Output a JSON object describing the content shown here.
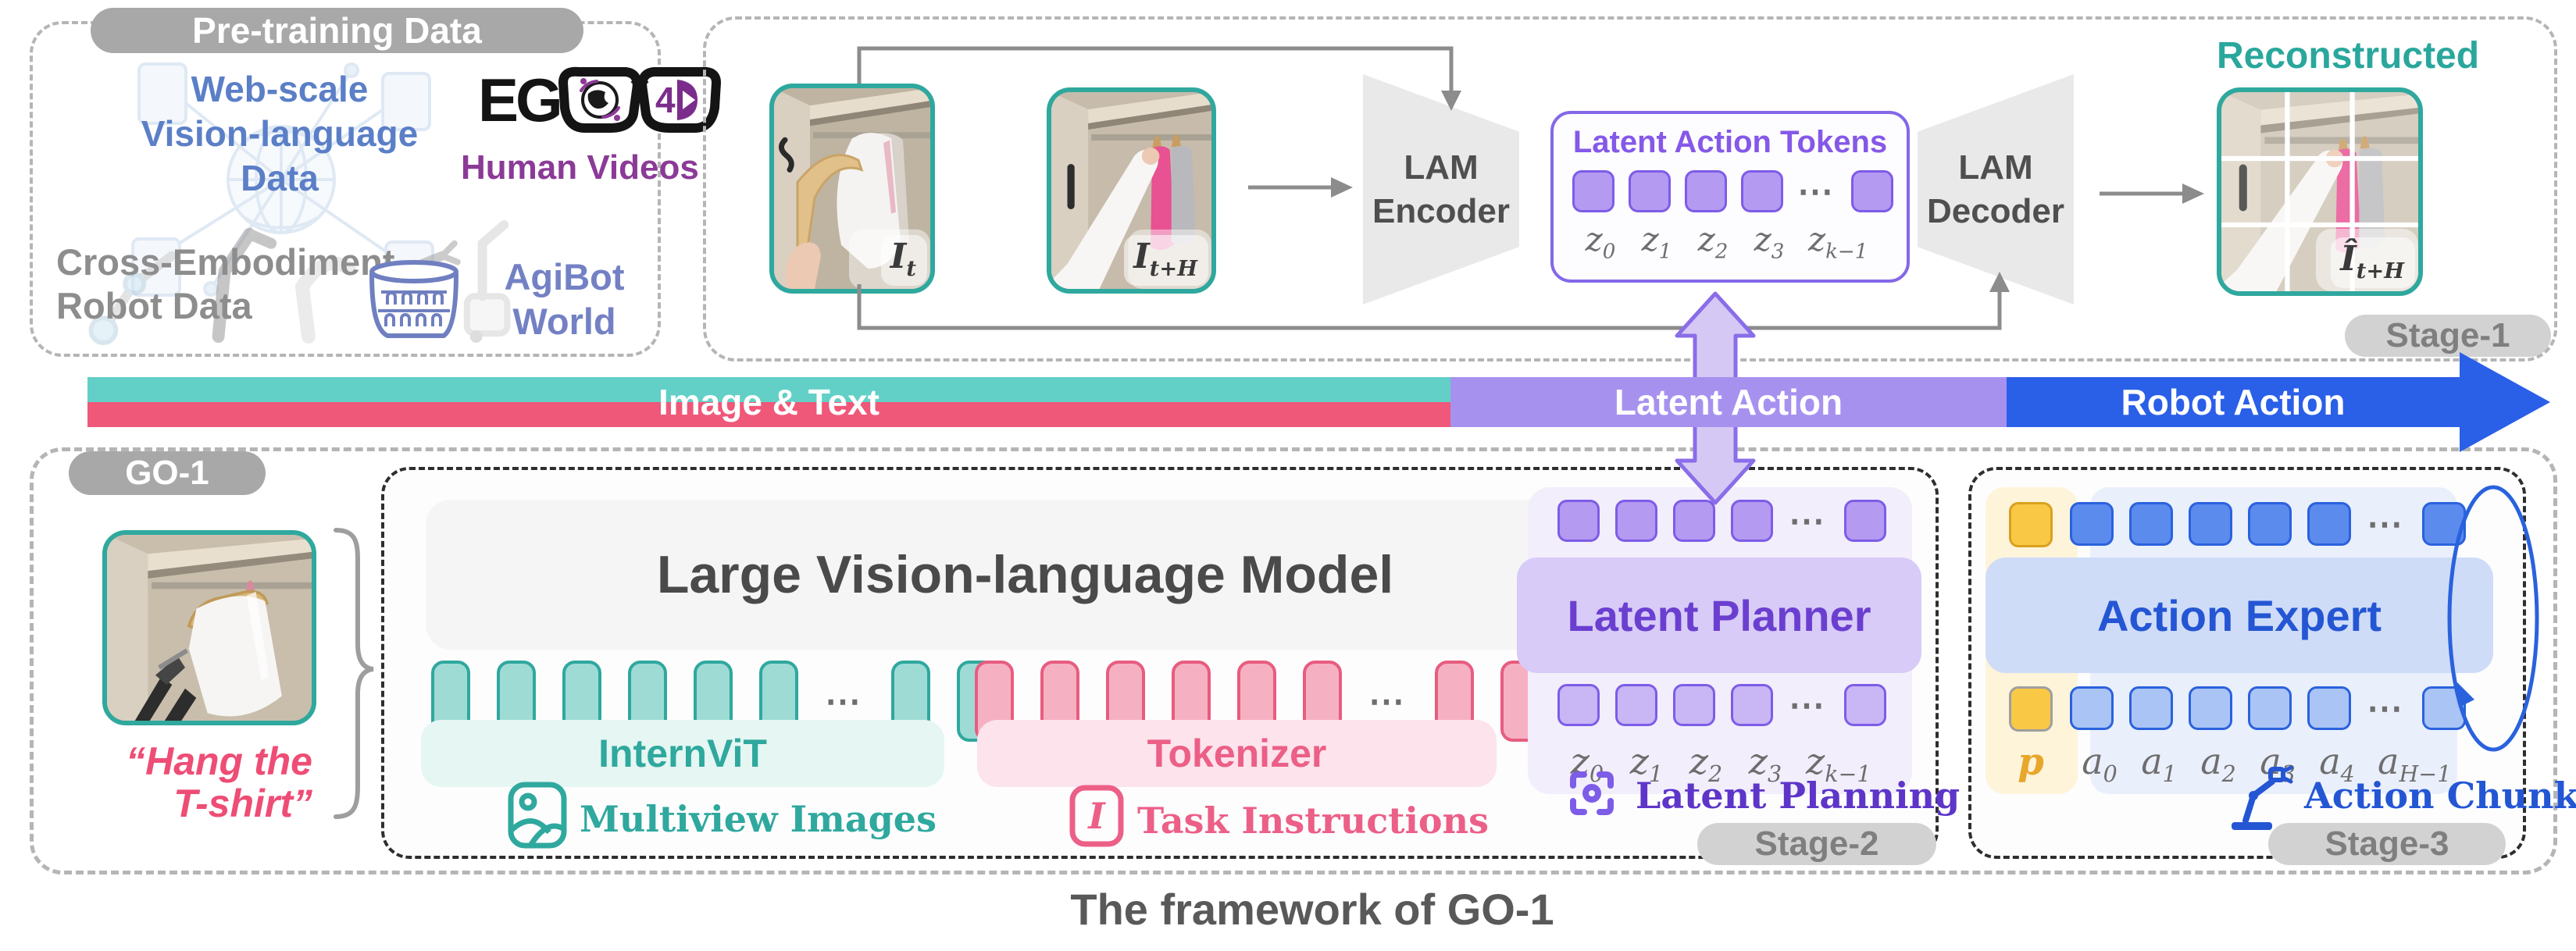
{
  "caption": "The framework of GO-1",
  "tokens": {
    "ellipsis": "⋯"
  },
  "colors": {
    "teal": "#2fa89e",
    "pink": "#e8527a",
    "purple": "#7d5ce8",
    "blue": "#2a62dd",
    "yellow": "#f9c845",
    "bar_teal": "#62d0c6",
    "bar_pink": "#ef5879",
    "bar_purple": "#a791ef",
    "bar_blue": "#2a5fe8",
    "gray_pill": "#a8a8a8"
  },
  "pretraining": {
    "title": "Pre-training Data",
    "web_scale_lines": [
      "Web-scale",
      "Vision-language",
      "Data"
    ],
    "ego_text": "EG",
    "ego_4d": "4D",
    "human_videos": "Human Videos",
    "cross_lines": [
      "Cross-Embodiment",
      "Robot Data"
    ],
    "agibot_lines": [
      "AgiBot",
      "World"
    ]
  },
  "stage1": {
    "label": "Stage-1",
    "encoder_lines": [
      "LAM",
      "Encoder"
    ],
    "decoder_lines": [
      "LAM",
      "Decoder"
    ],
    "tokens_title": "Latent Action Tokens",
    "reconstructed": "Reconstructed",
    "images": {
      "it": {
        "b": "I",
        "s": "t"
      },
      "ith": {
        "b": "I",
        "s": "t+H"
      },
      "ith_hat": {
        "b": "Î",
        "s": "t+H"
      }
    },
    "z_labels": [
      {
        "b": "z",
        "s": "0"
      },
      {
        "b": "z",
        "s": "1"
      },
      {
        "b": "z",
        "s": "2"
      },
      {
        "b": "z",
        "s": "3"
      },
      {
        "b": "z",
        "s": "k−1"
      }
    ]
  },
  "bar": {
    "image_text": "Image & Text",
    "latent_action": "Latent Action",
    "robot_action": "Robot Action"
  },
  "go1": {
    "label": "GO-1",
    "instruction_lines": [
      "“Hang the",
      "T-shirt”"
    ]
  },
  "stage2": {
    "label": "Stage-2",
    "lvlm": "Large Vision-language Model",
    "internvit": "InternViT",
    "tokenizer": "Tokenizer",
    "multiview": "Multiview Images",
    "task_instructions": "Task Instructions",
    "planner": "Latent Planner",
    "planning": "Latent Planning",
    "z_labels": [
      {
        "b": "z",
        "s": "0"
      },
      {
        "b": "z",
        "s": "1"
      },
      {
        "b": "z",
        "s": "2"
      },
      {
        "b": "z",
        "s": "3"
      },
      {
        "b": "z",
        "s": "k−1"
      }
    ]
  },
  "stage3": {
    "label": "Stage-3",
    "expert": "Action Expert",
    "chunk": "Action Chunk",
    "p_label": "p",
    "a_labels": [
      {
        "b": "a",
        "s": "0"
      },
      {
        "b": "a",
        "s": "1"
      },
      {
        "b": "a",
        "s": "2"
      },
      {
        "b": "a",
        "s": "3"
      },
      {
        "b": "a",
        "s": "4"
      },
      {
        "b": "a",
        "s": "H−1"
      }
    ]
  },
  "rows": {
    "lam": {
      "before": 4,
      "dots": true,
      "after": 1
    },
    "vision": {
      "before": 6,
      "dots": true,
      "after": 2
    },
    "text": {
      "before": 6,
      "dots": true,
      "after": 2
    },
    "planner_top": {
      "before": 4,
      "dots": true,
      "after": 1
    },
    "planner_bot": {
      "before": 4,
      "dots": true,
      "after": 1
    },
    "expert_top": {
      "before": 5,
      "dots": true,
      "after": 1
    },
    "expert_bot": {
      "before": 5,
      "dots": true,
      "after": 1
    }
  }
}
